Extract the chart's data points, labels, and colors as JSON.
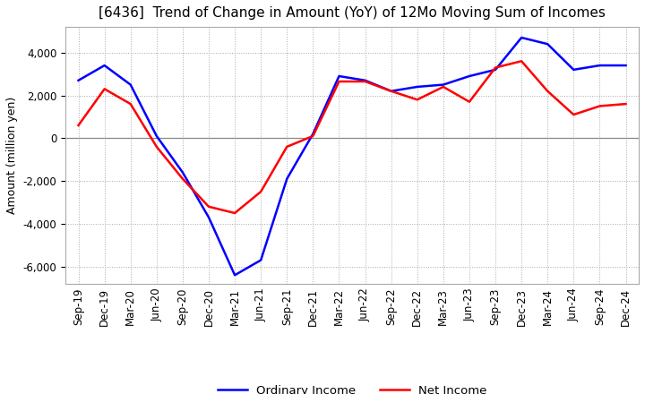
{
  "title": "[6436]  Trend of Change in Amount (YoY) of 12Mo Moving Sum of Incomes",
  "ylabel": "Amount (million yen)",
  "ylim": [
    -6800,
    5200
  ],
  "yticks": [
    -6000,
    -4000,
    -2000,
    0,
    2000,
    4000
  ],
  "x_labels": [
    "Sep-19",
    "Dec-19",
    "Mar-20",
    "Jun-20",
    "Sep-20",
    "Dec-20",
    "Mar-21",
    "Jun-21",
    "Sep-21",
    "Dec-21",
    "Mar-22",
    "Jun-22",
    "Sep-22",
    "Dec-22",
    "Mar-23",
    "Jun-23",
    "Sep-23",
    "Dec-23",
    "Mar-24",
    "Jun-24",
    "Sep-24",
    "Dec-24"
  ],
  "ordinary_income": [
    2700,
    3400,
    2500,
    100,
    -1600,
    -3700,
    -6400,
    -5700,
    -1900,
    200,
    2900,
    2700,
    2200,
    2400,
    2500,
    2900,
    3200,
    4700,
    4400,
    3200,
    3400,
    3400
  ],
  "net_income": [
    600,
    2300,
    1600,
    -400,
    -1900,
    -3200,
    -3500,
    -2500,
    -400,
    100,
    2650,
    2650,
    2200,
    1800,
    2400,
    1700,
    3300,
    3600,
    2200,
    1100,
    1500,
    1600
  ],
  "ordinary_color": "#0000ff",
  "net_color": "#ff0000",
  "legend_labels": [
    "Ordinary Income",
    "Net Income"
  ],
  "background_color": "#ffffff",
  "title_fontsize": 11,
  "axis_fontsize": 9,
  "tick_fontsize": 8.5,
  "line_width": 1.8
}
